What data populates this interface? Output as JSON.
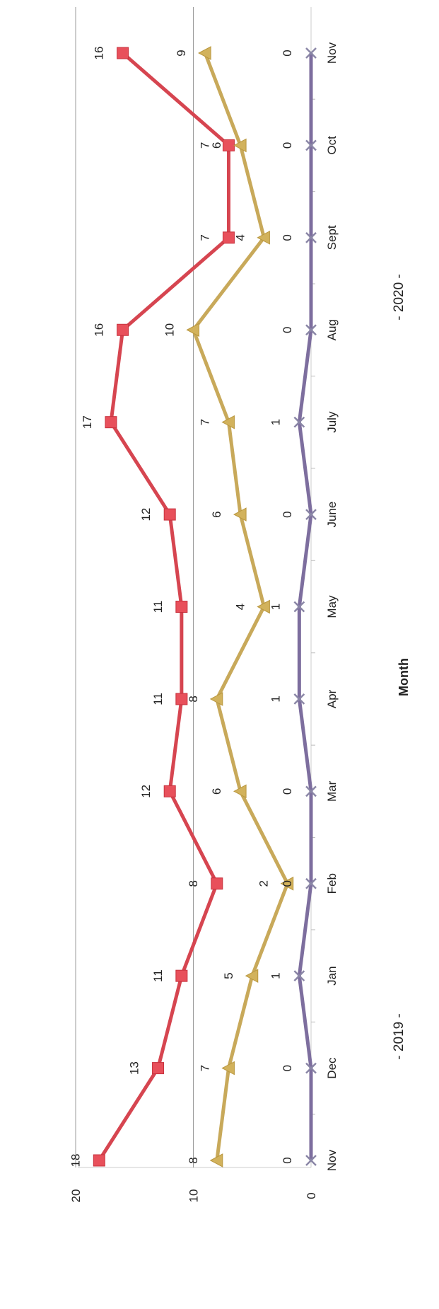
{
  "chart_data": {
    "type": "line",
    "orientation": "rotated-90",
    "xlabel": "Month",
    "ylabel": "",
    "ylim": [
      0,
      20
    ],
    "yticks": [
      0,
      10,
      20
    ],
    "grid": true,
    "categories": [
      "Nov",
      "Dec",
      "Jan",
      "Feb",
      "Mar",
      "Apr",
      "May",
      "June",
      "July",
      "Aug",
      "Sept",
      "Oct",
      "Nov"
    ],
    "year_groups": [
      "- 2019 -",
      "- 2020 -"
    ],
    "series": [
      {
        "values": [
          18,
          13,
          11,
          8,
          12,
          11,
          11,
          12,
          17,
          16,
          7,
          7,
          16
        ],
        "color": "#d64550",
        "marker": "square"
      },
      {
        "values": [
          8,
          7,
          5,
          2,
          6,
          8,
          4,
          6,
          7,
          10,
          4,
          6,
          9
        ],
        "color": "#c8a95a",
        "marker": "triangle"
      },
      {
        "values": [
          0,
          0,
          1,
          0,
          0,
          1,
          1,
          0,
          1,
          0,
          0,
          0,
          0
        ],
        "color": "#7d6e9e",
        "marker": "x"
      }
    ]
  }
}
